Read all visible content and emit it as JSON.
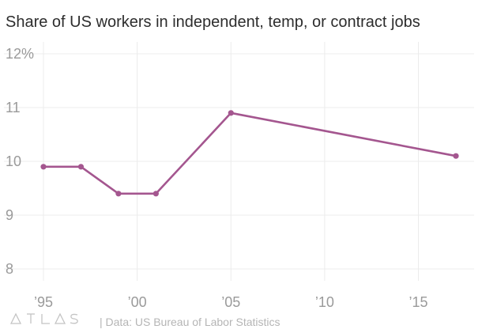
{
  "chart_data": {
    "type": "line",
    "title": "Share of US workers in independent, temp, or contract jobs",
    "xlabel": "",
    "ylabel": "",
    "x": [
      1995,
      1997,
      1999,
      2001,
      2005,
      2017
    ],
    "series": [
      {
        "values": [
          9.9,
          9.9,
          9.4,
          9.4,
          10.9,
          10.1
        ]
      }
    ],
    "xlim": [
      1995,
      2017
    ],
    "ylim": [
      8,
      12
    ],
    "x_ticks": [
      1995,
      2000,
      2005,
      2010,
      2015
    ],
    "x_tick_labels": [
      "’95",
      "’00",
      "’05",
      "’10",
      "’15"
    ],
    "y_ticks": [
      8,
      9,
      10,
      11,
      12
    ],
    "y_tick_labels": [
      "8",
      "9",
      "10",
      "11",
      "12%"
    ],
    "grid": true,
    "line_color": "#a4568f"
  },
  "footer": {
    "logo_text": "ATLAS",
    "source": "| Data: US Bureau of Labor Statistics"
  }
}
